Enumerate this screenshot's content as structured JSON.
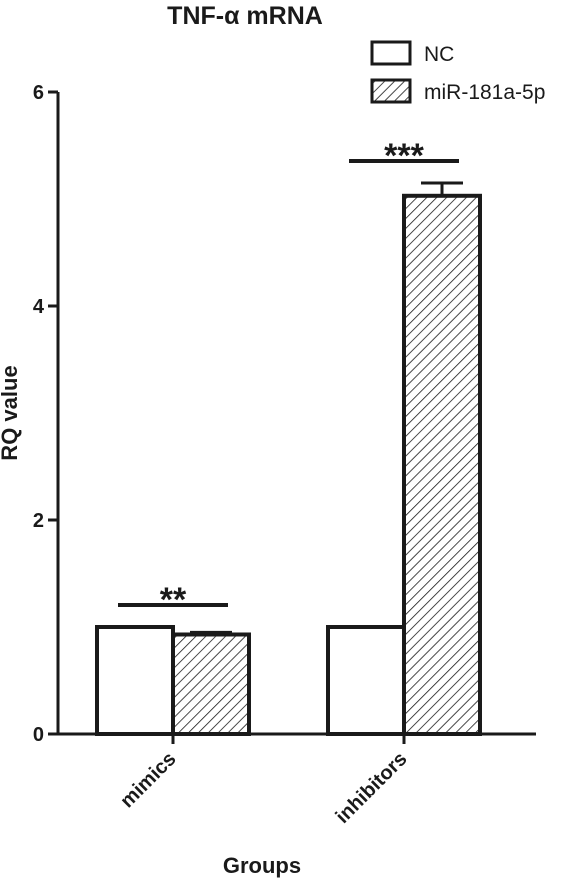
{
  "chart_data": {
    "type": "bar",
    "title": "TNF-α mRNA",
    "xlabel": "Groups",
    "ylabel": "RQ value",
    "categories": [
      "mimics",
      "inhibitors"
    ],
    "ylim": [
      0,
      6
    ],
    "yticks": [
      "0",
      "2",
      "4",
      "6"
    ],
    "series": [
      {
        "name": "NC",
        "values": [
          1.0,
          1.0
        ],
        "errors": [
          0,
          0
        ],
        "fill": "white"
      },
      {
        "name": "miR-181a-5p",
        "values": [
          0.93,
          5.03
        ],
        "errors": [
          0.02,
          0.12
        ],
        "fill": "hatched"
      }
    ],
    "significance": [
      "**",
      "***"
    ],
    "legend": "top-right",
    "grid": false
  }
}
